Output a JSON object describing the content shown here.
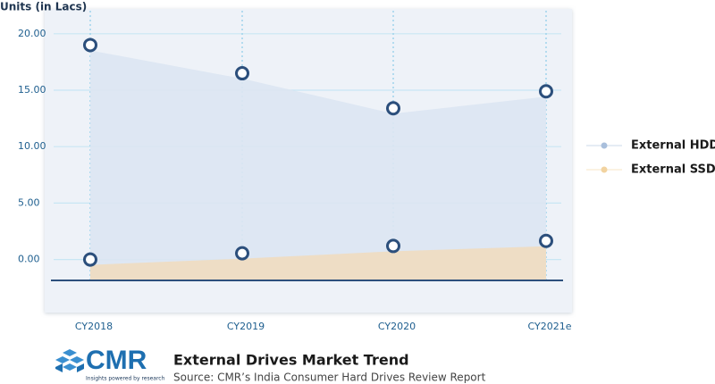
{
  "chart_data": {
    "type": "area",
    "ylabel": "Units (in Lacs)",
    "title": "External Drives Market Trend",
    "subtitle": "Source: CMR’s India Consumer Hard Drives Review Report",
    "categories": [
      "CY2018",
      "CY2019",
      "CY2020",
      "CY2021e"
    ],
    "series": [
      {
        "name": "External HDD",
        "color": "#a9bfdc",
        "values": [
          19.0,
          16.5,
          13.4,
          14.9
        ]
      },
      {
        "name": "External SSD",
        "color": "#f2d3a0",
        "values": [
          0.0,
          0.55,
          1.2,
          1.65
        ]
      }
    ],
    "ylim": [
      -4.7,
      22.2
    ],
    "yticks": [
      {
        "value": 0,
        "label": "0.00"
      },
      {
        "value": 5,
        "label": "5.00"
      },
      {
        "value": 10,
        "label": "10.00"
      },
      {
        "value": 15,
        "label": "15.00"
      },
      {
        "value": 20,
        "label": "20.00"
      }
    ],
    "grid": true
  },
  "footer": {
    "logo": "CMR",
    "tagline": "Insights powered by research"
  }
}
